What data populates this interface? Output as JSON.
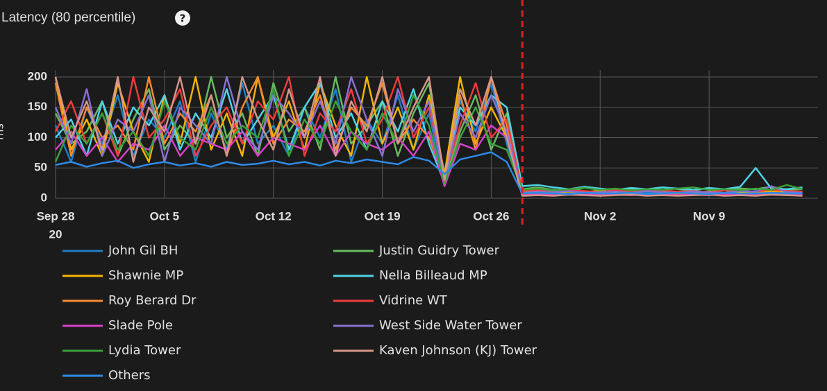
{
  "chart_data": {
    "type": "line",
    "title": "Latency (80 percentile)",
    "help_icon": "?",
    "ylabel": "ms",
    "x": [
      0,
      1,
      2,
      3,
      4,
      5,
      6,
      7,
      8,
      9,
      10,
      11,
      12,
      13,
      14,
      15,
      16,
      17,
      18,
      19,
      20,
      21,
      22,
      23,
      24,
      25,
      26,
      27,
      28,
      29,
      30,
      31,
      32,
      33,
      34,
      35,
      36,
      37,
      38,
      39,
      40,
      41,
      42,
      43,
      44,
      45,
      46,
      47,
      48
    ],
    "xlim": [
      0,
      49
    ],
    "xticks": [
      {
        "value": 0,
        "label": "Sep 28"
      },
      {
        "value": 7,
        "label": "Oct 5"
      },
      {
        "value": 14,
        "label": "Oct 12"
      },
      {
        "value": 21,
        "label": "Oct 19"
      },
      {
        "value": 28,
        "label": "Oct 26"
      },
      {
        "value": 35,
        "label": "Nov 2"
      },
      {
        "value": 42,
        "label": "Nov 9"
      }
    ],
    "x_year_label": "20",
    "ylim": [
      0,
      200
    ],
    "yticks": [
      0,
      50,
      100,
      150,
      200
    ],
    "grid": true,
    "event_x": 30,
    "event_color": "#e02020",
    "series": [
      {
        "name": "John Gil BH",
        "color": "#1f7fc4",
        "values": [
          120,
          60,
          150,
          90,
          170,
          70,
          130,
          100,
          160,
          60,
          140,
          80,
          190,
          90,
          120,
          70,
          150,
          100,
          180,
          60,
          130,
          90,
          170,
          80,
          140,
          20,
          160,
          110,
          190,
          90,
          8,
          10,
          9,
          8,
          12,
          9,
          8,
          10,
          9,
          11,
          8,
          9,
          10,
          8,
          9,
          12,
          10,
          9,
          8
        ]
      },
      {
        "name": "Justin Guidry Tower",
        "color": "#66bb5e",
        "values": [
          140,
          90,
          110,
          160,
          70,
          130,
          180,
          80,
          120,
          90,
          200,
          100,
          140,
          70,
          190,
          110,
          150,
          80,
          200,
          90,
          120,
          160,
          70,
          140,
          190,
          30,
          110,
          170,
          80,
          140,
          15,
          18,
          14,
          12,
          17,
          15,
          13,
          16,
          14,
          18,
          15,
          13,
          17,
          14,
          16,
          15,
          19,
          14,
          15
        ]
      },
      {
        "name": "Shawnie MP",
        "color": "#f4b400",
        "values": [
          200,
          80,
          130,
          70,
          190,
          110,
          60,
          170,
          90,
          200,
          80,
          140,
          70,
          200,
          100,
          160,
          80,
          190,
          120,
          70,
          200,
          90,
          150,
          80,
          170,
          40,
          200,
          90,
          150,
          100,
          10,
          12,
          9,
          11,
          10,
          13,
          9,
          10,
          12,
          11,
          9,
          10,
          11,
          13,
          10,
          9,
          12,
          11,
          10
        ]
      },
      {
        "name": "Nella Billeaud MP",
        "color": "#4fd4e6",
        "values": [
          100,
          130,
          70,
          160,
          90,
          150,
          120,
          170,
          80,
          140,
          100,
          180,
          90,
          130,
          170,
          80,
          150,
          190,
          100,
          140,
          80,
          160,
          110,
          180,
          90,
          25,
          150,
          120,
          170,
          150,
          20,
          22,
          18,
          15,
          19,
          16,
          14,
          17,
          15,
          18,
          16,
          14,
          17,
          15,
          19,
          50,
          16,
          15,
          18
        ]
      },
      {
        "name": "Roy Berard Dr",
        "color": "#f58a30",
        "values": [
          190,
          70,
          150,
          100,
          120,
          80,
          200,
          90,
          140,
          110,
          170,
          70,
          150,
          200,
          90,
          130,
          110,
          170,
          80,
          150,
          120,
          190,
          90,
          130,
          100,
          30,
          170,
          80,
          200,
          120,
          6,
          8,
          7,
          6,
          9,
          7,
          6,
          8,
          7,
          6,
          8,
          7,
          9,
          6,
          7,
          8,
          6,
          7,
          5
        ]
      },
      {
        "name": "Vidrine WT",
        "color": "#ee3c3c",
        "values": [
          110,
          160,
          90,
          140,
          70,
          200,
          100,
          130,
          180,
          70,
          120,
          150,
          90,
          160,
          130,
          200,
          70,
          140,
          110,
          180,
          90,
          130,
          200,
          100,
          150,
          35,
          120,
          190,
          100,
          130,
          12,
          14,
          11,
          13,
          12,
          10,
          14,
          11,
          12,
          13,
          11,
          12,
          10,
          13,
          12,
          11,
          14,
          12,
          11
        ]
      },
      {
        "name": "Slade Pole",
        "color": "#d940c8",
        "values": [
          80,
          110,
          70,
          100,
          60,
          90,
          80,
          120,
          70,
          100,
          90,
          80,
          110,
          70,
          100,
          90,
          80,
          120,
          70,
          110,
          90,
          80,
          100,
          70,
          110,
          20,
          90,
          80,
          120,
          100,
          5,
          6,
          5,
          7,
          6,
          5,
          6,
          5,
          7,
          6,
          5,
          6,
          5,
          7,
          6,
          5,
          6,
          5,
          6
        ]
      },
      {
        "name": "West Side Water Tower",
        "color": "#8a70d2",
        "values": [
          150,
          90,
          180,
          70,
          130,
          110,
          170,
          60,
          150,
          120,
          90,
          200,
          110,
          80,
          170,
          140,
          100,
          160,
          90,
          200,
          130,
          70,
          180,
          110,
          160,
          30,
          140,
          100,
          170,
          110,
          9,
          11,
          10,
          12,
          9,
          10,
          11,
          9,
          12,
          10,
          9,
          11,
          10,
          9,
          12,
          11,
          20,
          10,
          9
        ]
      },
      {
        "name": "Lydia Tower",
        "color": "#3aa03a",
        "values": [
          60,
          120,
          90,
          140,
          80,
          110,
          70,
          160,
          100,
          80,
          150,
          90,
          120,
          100,
          180,
          70,
          130,
          90,
          160,
          110,
          80,
          140,
          90,
          170,
          120,
          25,
          100,
          150,
          90,
          80,
          14,
          16,
          13,
          15,
          17,
          14,
          16,
          13,
          15,
          14,
          16,
          18,
          14,
          15,
          13,
          16,
          14,
          22,
          15
        ]
      },
      {
        "name": "Kaven Johnson (KJ) Tower",
        "color": "#d4968a",
        "values": [
          200,
          100,
          160,
          80,
          200,
          60,
          150,
          110,
          200,
          90,
          170,
          70,
          200,
          130,
          80,
          180,
          100,
          200,
          70,
          160,
          110,
          200,
          90,
          150,
          200,
          30,
          180,
          120,
          200,
          100,
          4,
          5,
          4,
          6,
          5,
          4,
          5,
          6,
          4,
          5,
          4,
          5,
          6,
          4,
          5,
          4,
          6,
          5,
          4
        ]
      },
      {
        "name": "Others",
        "color": "#2e8ae6",
        "values": [
          55,
          60,
          52,
          58,
          62,
          50,
          56,
          60,
          54,
          58,
          52,
          60,
          55,
          57,
          62,
          56,
          60,
          54,
          62,
          58,
          64,
          60,
          56,
          68,
          62,
          40,
          64,
          70,
          76,
          60,
          8,
          9,
          8,
          7,
          9,
          8,
          8,
          9,
          7,
          8,
          9,
          8,
          7,
          9,
          8,
          8,
          9,
          8,
          8
        ]
      }
    ]
  }
}
